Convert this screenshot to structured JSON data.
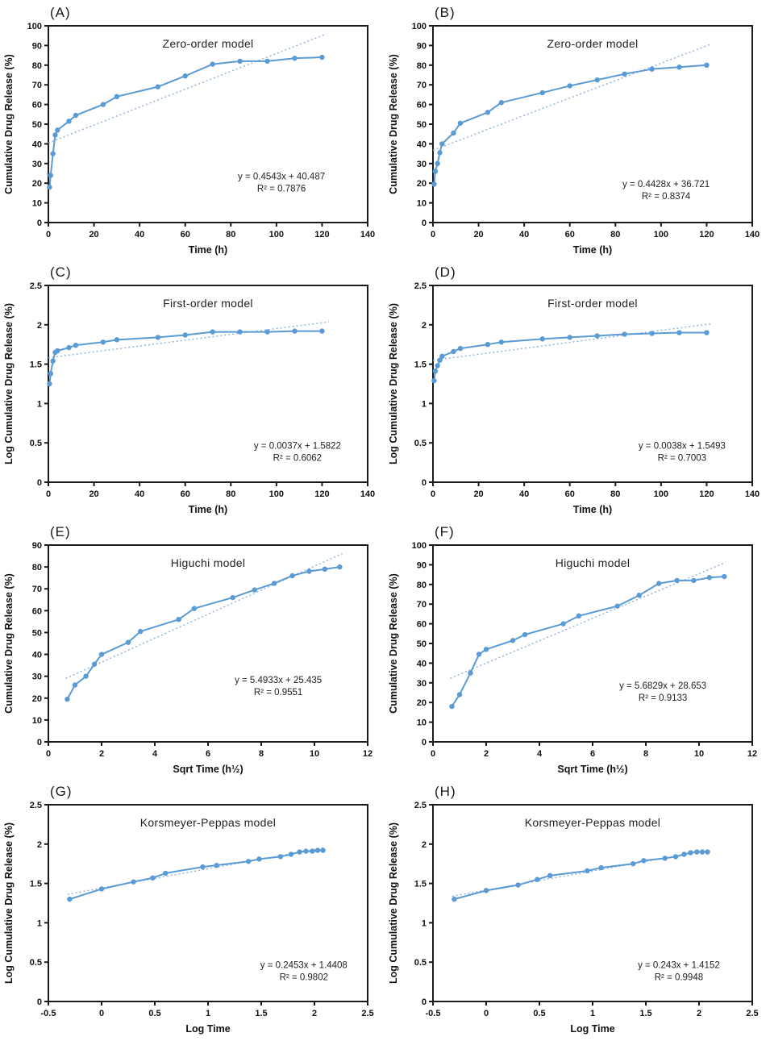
{
  "page": {
    "background": "#ffffff"
  },
  "colors": {
    "series": "#5b9bd5",
    "trendline": "#8cb0e0",
    "axis": "#1a1a1a",
    "text": "#222222"
  },
  "chart_data": [
    {
      "panel_label": "(A)",
      "type": "line",
      "title": "Zero-order model",
      "xlabel": "Time (h)",
      "ylabel": "Cumulative Drug Release (%)",
      "xlim": [
        0,
        140
      ],
      "ylim": [
        0,
        100
      ],
      "xticks": [
        0,
        20,
        40,
        60,
        80,
        100,
        120,
        140
      ],
      "yticks": [
        0,
        10,
        20,
        30,
        40,
        50,
        60,
        70,
        80,
        90,
        100
      ],
      "x": [
        0.5,
        1,
        2,
        3,
        4,
        9,
        12,
        24,
        30,
        48,
        60,
        72,
        84,
        96,
        108,
        120
      ],
      "y": [
        18,
        24,
        35,
        44.5,
        47,
        51.5,
        54.5,
        60,
        64,
        69,
        74.5,
        80.5,
        82,
        82,
        83.5,
        84
      ],
      "trendline": {
        "slope": 0.4543,
        "intercept": 40.487,
        "x_start": 0,
        "x_end": 122,
        "style": "dotted"
      },
      "equation": "y = 0.4543x + 40.487",
      "r_squared": "R² = 0.7876",
      "annotation_pos": {
        "x_frac": 0.73,
        "y_frac": 0.78
      },
      "legend": "none",
      "grid": false
    },
    {
      "panel_label": "(B)",
      "type": "line",
      "title": "Zero-order model",
      "xlabel": "Time (h)",
      "ylabel": "Cumulative Drug Release (%)",
      "xlim": [
        0,
        140
      ],
      "ylim": [
        0,
        100
      ],
      "xticks": [
        0,
        20,
        40,
        60,
        80,
        100,
        120,
        140
      ],
      "yticks": [
        0,
        10,
        20,
        30,
        40,
        50,
        60,
        70,
        80,
        90,
        100
      ],
      "x": [
        0.5,
        1,
        2,
        3,
        4,
        9,
        12,
        24,
        30,
        48,
        60,
        72,
        84,
        96,
        108,
        120
      ],
      "y": [
        19.5,
        26,
        30,
        35.5,
        40,
        45.5,
        50.5,
        56,
        61,
        66,
        69.5,
        72.5,
        75.5,
        78,
        79,
        80
      ],
      "trendline": {
        "slope": 0.4428,
        "intercept": 36.721,
        "x_start": 0,
        "x_end": 122,
        "style": "dotted"
      },
      "equation": "y = 0.4428x + 36.721",
      "r_squared": "R² = 0.8374",
      "annotation_pos": {
        "x_frac": 0.73,
        "y_frac": 0.82
      },
      "legend": "none",
      "grid": false
    },
    {
      "panel_label": "(C)",
      "type": "line",
      "title": "First-order model",
      "xlabel": "Time (h)",
      "ylabel": "Log Cumulative Drug Release (%)",
      "xlim": [
        0,
        140
      ],
      "ylim": [
        0,
        2.5
      ],
      "xticks": [
        0,
        20,
        40,
        60,
        80,
        100,
        120,
        140
      ],
      "yticks": [
        0,
        0.5,
        1,
        1.5,
        2,
        2.5
      ],
      "x": [
        0.5,
        1,
        2,
        3,
        4,
        9,
        12,
        24,
        30,
        48,
        60,
        72,
        84,
        96,
        108,
        120
      ],
      "y": [
        1.25,
        1.38,
        1.54,
        1.65,
        1.67,
        1.71,
        1.74,
        1.78,
        1.81,
        1.84,
        1.87,
        1.91,
        1.91,
        1.91,
        1.92,
        1.92
      ],
      "trendline": {
        "slope": 0.0037,
        "intercept": 1.5822,
        "x_start": 0,
        "x_end": 123,
        "style": "dotted"
      },
      "equation": "y = 0.0037x + 1.5822",
      "r_squared": "R² = 0.6062",
      "annotation_pos": {
        "x_frac": 0.78,
        "y_frac": 0.83
      },
      "legend": "none",
      "grid": false
    },
    {
      "panel_label": "(D)",
      "type": "line",
      "title": "First-order model",
      "xlabel": "Time (h)",
      "ylabel": "Log Cumulative Drug Release (%)",
      "xlim": [
        0,
        140
      ],
      "ylim": [
        0,
        2.5
      ],
      "xticks": [
        0,
        20,
        40,
        60,
        80,
        100,
        120,
        140
      ],
      "yticks": [
        0,
        0.5,
        1,
        1.5,
        2,
        2.5
      ],
      "x": [
        0.5,
        1,
        2,
        3,
        4,
        9,
        12,
        24,
        30,
        48,
        60,
        72,
        84,
        96,
        108,
        120
      ],
      "y": [
        1.29,
        1.41,
        1.48,
        1.55,
        1.6,
        1.66,
        1.7,
        1.75,
        1.78,
        1.82,
        1.84,
        1.86,
        1.88,
        1.89,
        1.9,
        1.9
      ],
      "trendline": {
        "slope": 0.0038,
        "intercept": 1.5493,
        "x_start": 0,
        "x_end": 122,
        "style": "dotted"
      },
      "equation": "y = 0.0038x + 1.5493",
      "r_squared": "R² = 0.7003",
      "annotation_pos": {
        "x_frac": 0.78,
        "y_frac": 0.83
      },
      "legend": "none",
      "grid": false
    },
    {
      "panel_label": "(E)",
      "type": "line",
      "title": "Higuchi model",
      "xlabel": "Sqrt Time (h½)",
      "ylabel": "Cumulative Drug Release (%)",
      "xlim": [
        0,
        12
      ],
      "ylim": [
        0,
        90
      ],
      "xticks": [
        0,
        2,
        4,
        6,
        8,
        10,
        12
      ],
      "yticks": [
        0,
        10,
        20,
        30,
        40,
        50,
        60,
        70,
        80,
        90
      ],
      "x": [
        0.71,
        1,
        1.41,
        1.73,
        2,
        3,
        3.46,
        4.9,
        5.48,
        6.93,
        7.75,
        8.49,
        9.17,
        9.8,
        10.39,
        10.95
      ],
      "y": [
        19.5,
        26,
        30,
        35.5,
        40,
        45.5,
        50.5,
        56,
        61,
        66,
        69.5,
        72.5,
        76,
        78,
        79,
        80
      ],
      "trendline": {
        "slope": 5.4933,
        "intercept": 25.435,
        "x_start": 0.65,
        "x_end": 11.05,
        "style": "dotted"
      },
      "equation": "y = 5.4933x + 25.435",
      "r_squared": "R² = 0.9551",
      "annotation_pos": {
        "x_frac": 0.72,
        "y_frac": 0.7
      },
      "legend": "none",
      "grid": false
    },
    {
      "panel_label": "(F)",
      "type": "line",
      "title": "Higuchi model",
      "xlabel": "Sqrt Time (h½)",
      "ylabel": "Cumulative Drug Release (%)",
      "xlim": [
        0,
        12
      ],
      "ylim": [
        0,
        100
      ],
      "xticks": [
        0,
        2,
        4,
        6,
        8,
        10,
        12
      ],
      "yticks": [
        0,
        10,
        20,
        30,
        40,
        50,
        60,
        70,
        80,
        90,
        100
      ],
      "x": [
        0.71,
        1,
        1.41,
        1.73,
        2,
        3,
        3.46,
        4.9,
        5.48,
        6.93,
        7.75,
        8.49,
        9.17,
        9.8,
        10.39,
        10.95
      ],
      "y": [
        18,
        24,
        35,
        44.5,
        47,
        51.5,
        54.5,
        60,
        64,
        69,
        74.5,
        80.5,
        82,
        82,
        83.5,
        84
      ],
      "trendline": {
        "slope": 5.6829,
        "intercept": 28.653,
        "x_start": 0.65,
        "x_end": 11,
        "style": "dotted"
      },
      "equation": "y = 5.6829x + 28.653",
      "r_squared": "R² = 0.9133",
      "annotation_pos": {
        "x_frac": 0.72,
        "y_frac": 0.73
      },
      "legend": "none",
      "grid": false
    },
    {
      "panel_label": "(G)",
      "type": "line",
      "title": "Korsmeyer-Peppas model",
      "xlabel": "Log Time",
      "ylabel": "Log Cumulative Drug Release (%)",
      "xlim": [
        -0.5,
        2.5
      ],
      "ylim": [
        0,
        2.5
      ],
      "xticks": [
        -0.5,
        0,
        0.5,
        1,
        1.5,
        2,
        2.5
      ],
      "yticks": [
        0,
        0.5,
        1,
        1.5,
        2,
        2.5
      ],
      "x": [
        -0.3,
        0,
        0.3,
        0.48,
        0.6,
        0.95,
        1.08,
        1.38,
        1.48,
        1.68,
        1.78,
        1.86,
        1.92,
        1.98,
        2.03,
        2.08
      ],
      "y": [
        1.3,
        1.43,
        1.52,
        1.57,
        1.63,
        1.71,
        1.73,
        1.78,
        1.81,
        1.84,
        1.87,
        1.9,
        1.91,
        1.91,
        1.92,
        1.92
      ],
      "trendline": {
        "slope": 0.2453,
        "intercept": 1.4408,
        "x_start": -0.32,
        "x_end": 2.1,
        "style": "dotted"
      },
      "equation": "y = 0.2453x + 1.4408",
      "r_squared": "R² = 0.9802",
      "annotation_pos": {
        "x_frac": 0.8,
        "y_frac": 0.83
      },
      "legend": "none",
      "grid": false
    },
    {
      "panel_label": "(H)",
      "type": "line",
      "title": "Korsmeyer-Peppas model",
      "xlabel": "Log Time",
      "ylabel": "Log Cumulative Drug Release (%)",
      "xlim": [
        -0.5,
        2.5
      ],
      "ylim": [
        0,
        2.5
      ],
      "xticks": [
        -0.5,
        0,
        0.5,
        1,
        1.5,
        2,
        2.5
      ],
      "yticks": [
        0,
        0.5,
        1,
        1.5,
        2,
        2.5
      ],
      "x": [
        -0.3,
        0,
        0.3,
        0.48,
        0.6,
        0.95,
        1.08,
        1.38,
        1.48,
        1.68,
        1.78,
        1.86,
        1.92,
        1.98,
        2.03,
        2.08
      ],
      "y": [
        1.3,
        1.41,
        1.48,
        1.55,
        1.6,
        1.66,
        1.7,
        1.75,
        1.79,
        1.82,
        1.84,
        1.87,
        1.89,
        1.9,
        1.9,
        1.9
      ],
      "trendline": {
        "slope": 0.243,
        "intercept": 1.4152,
        "x_start": -0.32,
        "x_end": 2.1,
        "style": "dotted"
      },
      "equation": "y = 0.243x + 1.4152",
      "r_squared": "R² = 0.9948",
      "annotation_pos": {
        "x_frac": 0.77,
        "y_frac": 0.83
      },
      "legend": "none",
      "grid": false
    }
  ]
}
